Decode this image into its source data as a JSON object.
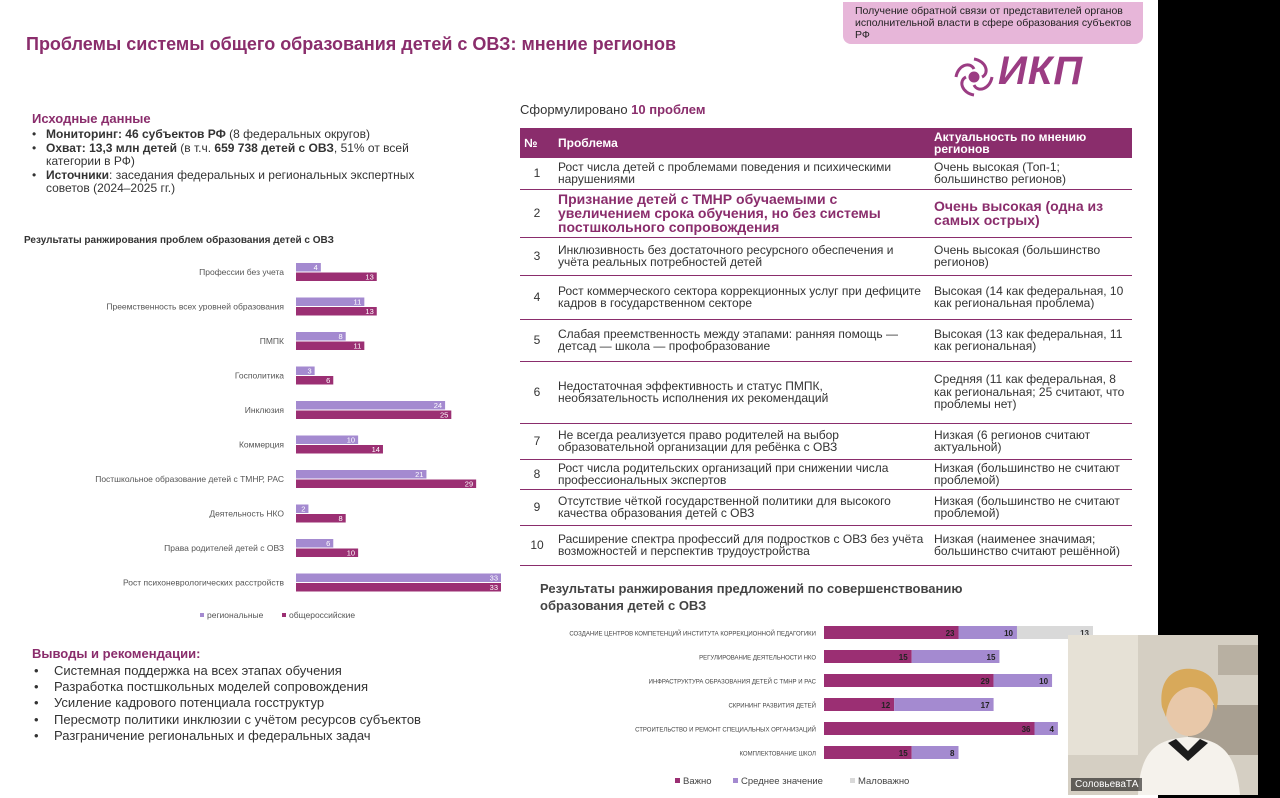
{
  "slide": {
    "title": "Проблемы системы общего образования детей с ОВЗ: мнение регионов",
    "tag": "Получение обратной связи от представителей органов исполнительной власти в сфере образования  субъектов РФ",
    "logo_text": "ИКП",
    "accent_color": "#8a2d6c"
  },
  "source": {
    "heading": "Исходные данные",
    "items": [
      {
        "label": "Мониторинг",
        "bold_value": ": 46 субъектов РФ",
        "rest": " (8 федеральных округов)"
      },
      {
        "label": "Охват",
        "bold_value": ": 13,3 млн детей",
        "rest_a": " (в т.ч. ",
        "bold2": "659 738 детей с ОВЗ",
        "rest_b": ", 51% от всей категории в РФ)"
      },
      {
        "label": "Источники",
        "rest": ": заседания федеральных и региональных экспертных советов (2024–2025 гг.)"
      }
    ]
  },
  "left_chart_title": "Результаты ранжирования проблем образования детей с ОВЗ",
  "chart_data": [
    {
      "type": "bar",
      "orientation": "horizontal",
      "title": "Результаты ранжирования проблем образования детей с ОВЗ",
      "categories": [
        "Профессии без учета",
        "Преемственность всех уровней образования",
        "ПМПК",
        "Госполитика",
        "Инклюзия",
        "Коммерция",
        "Постшкольное образование детей с ТМНР, РАС",
        "Деятельность НКО",
        "Права родителей детей с ОВЗ",
        "Рост психоневрологических расстройств"
      ],
      "series": [
        {
          "name": "региональные",
          "color": "#a48ad0",
          "values": [
            4,
            11,
            8,
            3,
            24,
            10,
            21,
            2,
            6,
            33
          ]
        },
        {
          "name": "общероссийские",
          "color": "#9b2f73",
          "values": [
            13,
            13,
            11,
            6,
            25,
            14,
            29,
            8,
            10,
            33
          ]
        }
      ],
      "xlim": [
        0,
        33
      ],
      "legend": "bottom"
    },
    {
      "type": "bar",
      "orientation": "horizontal",
      "stacked": true,
      "title": "Результаты ранжирования предложений по совершенствованию образования детей с ОВЗ",
      "categories": [
        "СОЗДАНИЕ ЦЕНТРОВ КОМПЕТЕНЦИЙ ИНСТИТУТА КОРРЕКЦИОННОЙ ПЕДАГОГИКИ",
        "РЕГУЛИРОВАНИЕ ДЕЯТЕЛЬНОСТИ НКО",
        "ИНФРАСТРУКТУРА ОБРАЗОВАНИЯ ДЕТЕЙ С ТМНР И РАС",
        "СКРИНИНГ РАЗВИТИЯ ДЕТЕЙ",
        "СТРОИТЕЛЬСТВО И РЕМОНТ СПЕЦИАЛЬНЫХ ОРГАНИЗАЦИЙ",
        "КОМПЛЕКТОВАНИЕ ШКОЛ"
      ],
      "series": [
        {
          "name": "Важно",
          "color": "#9b2f73",
          "values": [
            23,
            15,
            29,
            12,
            36,
            15
          ]
        },
        {
          "name": "Среднее значение",
          "color": "#a48ad0",
          "values": [
            10,
            15,
            10,
            17,
            4,
            8
          ]
        },
        {
          "name": "Маловажно",
          "color": "#d9d9d9",
          "values": [
            13,
            null,
            null,
            null,
            null,
            null
          ]
        }
      ],
      "xlim": [
        0,
        46
      ],
      "legend": "bottom"
    }
  ],
  "table": {
    "intro_prefix": "Сформулировано ",
    "intro_count": "10 проблем",
    "headers": {
      "num": "№",
      "problem": "Проблема",
      "relevance": "Актуальность по мнению регионов"
    },
    "rows": [
      {
        "n": "1",
        "problem": "Рост числа детей с проблемами поведения и психическими нарушениями",
        "relevance": "Очень высокая (Топ-1; большинство регионов)"
      },
      {
        "n": "2",
        "problem": "Признание детей с ТМНР обучаемыми с увеличением срока обучения, но без системы постшкольного сопровождения",
        "relevance": "Очень высокая (одна из самых острых)"
      },
      {
        "n": "3",
        "problem": "Инклюзивность без достаточного ресурсного обеспечения и учёта реальных потребностей детей",
        "relevance": "Очень высокая (большинство регионов)"
      },
      {
        "n": "4",
        "problem": "Рост коммерческого сектора коррекционных услуг при дефиците кадров в государственном секторе",
        "relevance": "Высокая (14 как федеральная, 10 как региональная проблема)"
      },
      {
        "n": "5",
        "problem": "Слабая преемственность между этапами: ранняя помощь — детсад — школа — профобразование",
        "relevance": "Высокая (13 как федеральная, 11 как региональная)"
      },
      {
        "n": "6",
        "problem": "Недостаточная эффективность и статус ПМПК, необязательность исполнения их рекомендаций",
        "relevance": "Средняя (11 как федеральная, 8 как региональная; 25 считают, что проблемы нет)"
      },
      {
        "n": "7",
        "problem": "Не всегда реализуется право родителей на выбор образовательной организации для ребёнка с ОВЗ",
        "relevance": "Низкая (6 регионов считают актуальной)"
      },
      {
        "n": "8",
        "problem": "Рост числа родительских организаций при снижении числа профессиональных экспертов",
        "relevance": "Низкая (большинство не считают проблемой)"
      },
      {
        "n": "9",
        "problem": "Отсутствие чёткой государственной политики для высокого качества образования детей с ОВЗ",
        "relevance": "Низкая (большинство не считают проблемой)"
      },
      {
        "n": "10",
        "problem": "Расширение спектра профессий для подростков с ОВЗ без учёта возможностей и перспектив трудоустройства",
        "relevance": "Низкая (наименее значимая; большинство считают решённой)"
      }
    ]
  },
  "right_chart_title": "Результаты ранжирования предложений по совершенствованию образования детей с ОВЗ",
  "conclusions": {
    "heading": "Выводы и рекомендации:",
    "items": [
      "Системная поддержка на всех этапах обучения",
      "Разработка постшкольных моделей сопровождения",
      "Усиление кадрового потенциала госструктур",
      "Пересмотр политики инклюзии с учётом ресурсов субъектов",
      "Разграничение региональных и федеральных задач"
    ]
  },
  "video": {
    "participant_name": "СоловьеваТА"
  }
}
